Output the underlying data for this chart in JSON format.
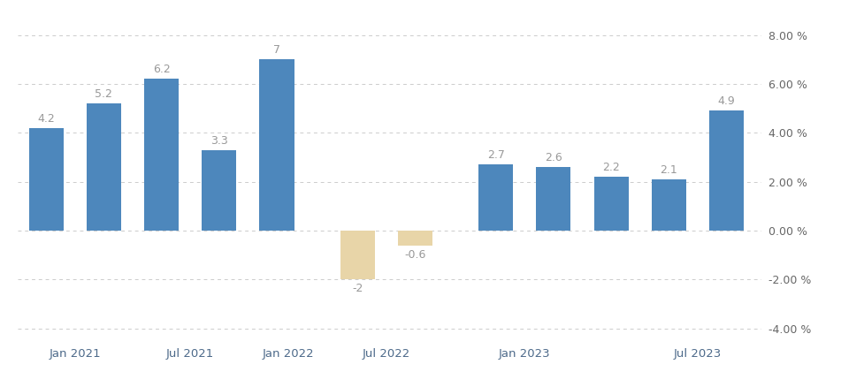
{
  "values": [
    4.2,
    5.2,
    6.2,
    3.3,
    7.0,
    -2.0,
    -0.6,
    2.7,
    2.6,
    2.2,
    2.1,
    4.9
  ],
  "positive_color": "#4d87bc",
  "negative_color": "#e8d5a8",
  "label_color": "#999999",
  "background_color": "#ffffff",
  "grid_color": "#cccccc",
  "ylim": [
    -4.5,
    8.8
  ],
  "yticks": [
    -4.0,
    -2.0,
    0.0,
    2.0,
    4.0,
    6.0,
    8.0
  ],
  "ytick_labels": [
    "-4.00 %",
    "-2.00 %",
    "0.00 %",
    "2.00 %",
    "4.00 %",
    "6.00 %",
    "8.00 %"
  ],
  "xtick_labels": [
    "Jan 2021",
    "Jul 2021",
    "Jan 2022",
    "Jul 2022",
    "Jan 2023",
    "Jul 2023"
  ],
  "value_labels": [
    "4.2",
    "5.2",
    "6.2",
    "3.3",
    "7",
    "-2",
    "-0.6",
    "2.7",
    "2.6",
    "2.2",
    "2.1",
    "4.9"
  ],
  "bar_width": 0.6,
  "bar_positions": [
    0,
    1,
    2,
    3,
    4,
    5.4,
    6.4,
    7.8,
    8.8,
    9.8,
    10.8,
    11.8
  ],
  "xtick_positions": [
    0.5,
    2.5,
    4.2,
    5.9,
    8.3,
    11.3
  ],
  "xlim": [
    -0.5,
    12.4
  ]
}
